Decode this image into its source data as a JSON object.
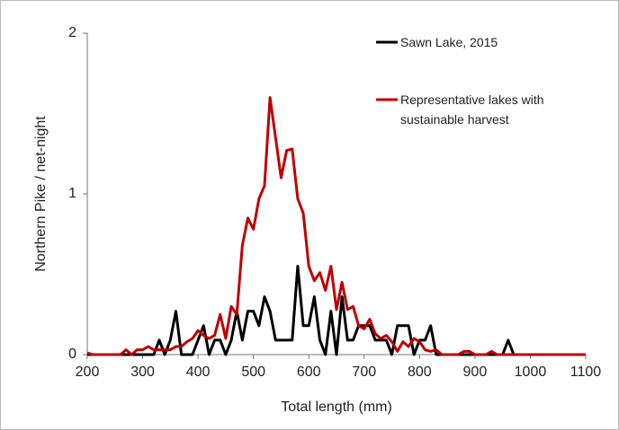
{
  "chart_data": {
    "type": "line",
    "xlabel": "Total length (mm)",
    "ylabel": "Northern Pike / net-night",
    "x": [
      200,
      210,
      220,
      230,
      240,
      250,
      260,
      270,
      280,
      290,
      300,
      310,
      320,
      330,
      340,
      350,
      360,
      370,
      380,
      390,
      400,
      410,
      420,
      430,
      440,
      450,
      460,
      470,
      480,
      490,
      500,
      510,
      520,
      530,
      540,
      550,
      560,
      570,
      580,
      590,
      600,
      610,
      620,
      630,
      640,
      650,
      660,
      670,
      680,
      690,
      700,
      710,
      720,
      730,
      740,
      750,
      760,
      770,
      780,
      790,
      800,
      810,
      820,
      830,
      840,
      850,
      860,
      870,
      880,
      890,
      900,
      910,
      920,
      930,
      940,
      950,
      960,
      970,
      980,
      990,
      1000,
      1010,
      1020,
      1030,
      1040,
      1050,
      1060,
      1070,
      1080,
      1090,
      1100
    ],
    "series": [
      {
        "name": "Sawn Lake, 2015",
        "color": "#000000",
        "values": [
          0,
          0,
          0,
          0,
          0,
          0,
          0,
          0,
          0,
          0,
          0,
          0,
          0,
          0.09,
          0,
          0.09,
          0.27,
          0,
          0,
          0,
          0.09,
          0.18,
          0,
          0.09,
          0.09,
          0,
          0.09,
          0.27,
          0.09,
          0.27,
          0.27,
          0.18,
          0.36,
          0.27,
          0.09,
          0.09,
          0.09,
          0.09,
          0.55,
          0.18,
          0.18,
          0.36,
          0.09,
          0,
          0.27,
          0,
          0.36,
          0.09,
          0.09,
          0.18,
          0.18,
          0.18,
          0.09,
          0.09,
          0.09,
          0,
          0.18,
          0.18,
          0.18,
          0,
          0.09,
          0.09,
          0.18,
          0,
          0,
          0,
          0,
          0,
          0,
          0,
          0,
          0,
          0,
          0,
          0,
          0,
          0.09,
          0,
          0,
          0,
          0,
          0,
          0,
          0,
          0,
          0,
          0,
          0,
          0,
          0,
          0
        ]
      },
      {
        "name": "Representative lakes with sustainable harvest",
        "color": "#c00000",
        "values": [
          0.01,
          0,
          0,
          0,
          0,
          0,
          0,
          0.03,
          0,
          0.03,
          0.03,
          0.05,
          0.03,
          0.03,
          0.03,
          0.03,
          0.05,
          0.05,
          0.08,
          0.1,
          0.15,
          0.12,
          0.1,
          0.12,
          0.25,
          0.1,
          0.3,
          0.25,
          0.68,
          0.85,
          0.78,
          0.97,
          1.05,
          1.6,
          1.35,
          1.1,
          1.27,
          1.28,
          0.97,
          0.88,
          0.55,
          0.46,
          0.51,
          0.4,
          0.55,
          0.28,
          0.45,
          0.28,
          0.3,
          0.18,
          0.16,
          0.22,
          0.13,
          0.1,
          0.12,
          0.08,
          0.02,
          0.08,
          0.05,
          0.1,
          0.08,
          0.03,
          0.02,
          0.03,
          0,
          0,
          0,
          0,
          0.02,
          0.02,
          0,
          0,
          0,
          0.02,
          0,
          0,
          0,
          0,
          0,
          0,
          0,
          0,
          0,
          0,
          0,
          0,
          0,
          0,
          0,
          0,
          0
        ]
      }
    ],
    "xlim": [
      200,
      1100
    ],
    "xticks": [
      200,
      300,
      400,
      500,
      600,
      700,
      800,
      900,
      1000,
      1100
    ],
    "ylim": [
      0,
      2
    ],
    "yticks": [
      0,
      1,
      2
    ],
    "grid": false
  }
}
